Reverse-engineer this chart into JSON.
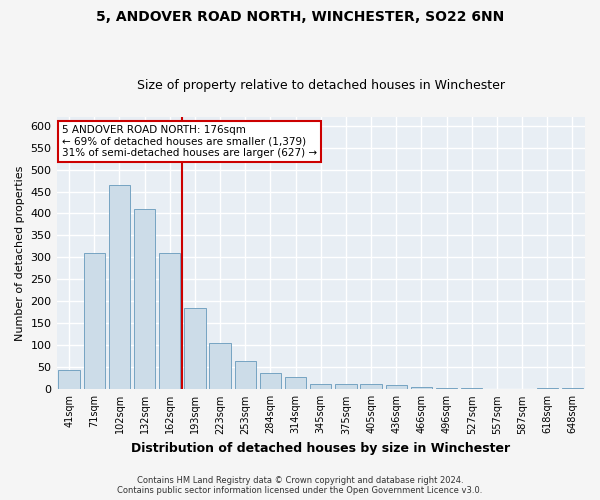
{
  "title": "5, ANDOVER ROAD NORTH, WINCHESTER, SO22 6NN",
  "subtitle": "Size of property relative to detached houses in Winchester",
  "xlabel": "Distribution of detached houses by size in Winchester",
  "ylabel": "Number of detached properties",
  "categories": [
    "41sqm",
    "71sqm",
    "102sqm",
    "132sqm",
    "162sqm",
    "193sqm",
    "223sqm",
    "253sqm",
    "284sqm",
    "314sqm",
    "345sqm",
    "375sqm",
    "405sqm",
    "436sqm",
    "466sqm",
    "496sqm",
    "527sqm",
    "557sqm",
    "587sqm",
    "618sqm",
    "648sqm"
  ],
  "values": [
    45,
    310,
    465,
    410,
    310,
    185,
    105,
    65,
    37,
    28,
    13,
    11,
    13,
    10,
    6,
    4,
    2,
    1,
    1,
    4,
    4
  ],
  "bar_color": "#ccdce8",
  "bar_edge_color": "#6699bb",
  "red_line_x": 4.5,
  "annotation_line1": "5 ANDOVER ROAD NORTH: 176sqm",
  "annotation_line2": "← 69% of detached houses are smaller (1,379)",
  "annotation_line3": "31% of semi-detached houses are larger (627) →",
  "annotation_box_color": "#ffffff",
  "annotation_box_edge": "#cc0000",
  "ylim": [
    0,
    620
  ],
  "yticks": [
    0,
    50,
    100,
    150,
    200,
    250,
    300,
    350,
    400,
    450,
    500,
    550,
    600
  ],
  "plot_bg_color": "#e8eef4",
  "grid_color": "#ffffff",
  "fig_bg_color": "#f5f5f5",
  "footer": "Contains HM Land Registry data © Crown copyright and database right 2024.\nContains public sector information licensed under the Open Government Licence v3.0.",
  "title_fontsize": 10,
  "subtitle_fontsize": 9
}
